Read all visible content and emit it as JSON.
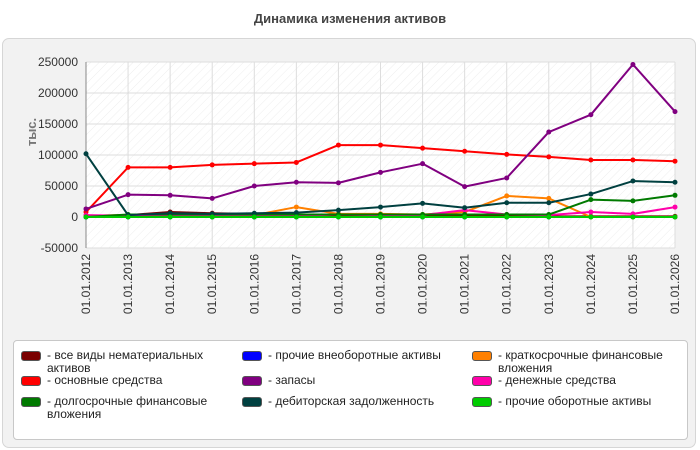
{
  "chart_data": {
    "type": "line",
    "title": "Динамика изменения активов",
    "ylabel": "тыс.",
    "xlabel": "",
    "ylim": [
      -50000,
      250000
    ],
    "yticks": [
      -50000,
      0,
      50000,
      100000,
      150000,
      200000,
      250000
    ],
    "ytick_labels": [
      "-50000",
      "0",
      "50000",
      "100000",
      "150000",
      "200000",
      "250000"
    ],
    "grid": true,
    "legend_position": "bottom",
    "categories": [
      "01.01.2012",
      "01.01.2013",
      "01.01.2014",
      "01.01.2015",
      "01.01.2016",
      "01.01.2017",
      "01.01.2018",
      "01.01.2019",
      "01.01.2020",
      "01.01.2021",
      "01.01.2022",
      "01.01.2023",
      "01.01.2024",
      "01.01.2025",
      "01.01.2026"
    ],
    "series": [
      {
        "name": "- все виды нематериальных активов",
        "color": "#7a0000",
        "values": [
          2000,
          3000,
          8000,
          6000,
          5000,
          4000,
          3000,
          3000,
          2000,
          2000,
          2000,
          1000,
          1000,
          1000,
          1000
        ]
      },
      {
        "name": "- прочие внеоборотные активы",
        "color": "#0000ff",
        "values": [
          0,
          0,
          0,
          0,
          0,
          0,
          0,
          0,
          0,
          0,
          0,
          0,
          0,
          0,
          0
        ]
      },
      {
        "name": "- краткосрочные финансовые вложения",
        "color": "#ff8000",
        "values": [
          2000,
          3000,
          2000,
          2000,
          3000,
          16000,
          5000,
          5000,
          4000,
          8000,
          34000,
          30000,
          0,
          0,
          0
        ]
      },
      {
        "name": "- основные средства",
        "color": "#ff0000",
        "values": [
          8000,
          80000,
          80000,
          84000,
          86000,
          88000,
          116000,
          116000,
          111000,
          106000,
          101000,
          97000,
          92000,
          92000,
          90000
        ]
      },
      {
        "name": "- запасы",
        "color": "#800080",
        "values": [
          13000,
          36000,
          35000,
          30000,
          50000,
          56000,
          55000,
          72000,
          86000,
          49000,
          63000,
          137000,
          165000,
          246000,
          170000
        ]
      },
      {
        "name": "- денежные средства",
        "color": "#ff00aa",
        "values": [
          3000,
          2000,
          2000,
          2000,
          1000,
          2000,
          4000,
          3000,
          3000,
          11000,
          4000,
          3000,
          8000,
          5000,
          16000
        ]
      },
      {
        "name": "- долгосрочные финансовые вложения",
        "color": "#007a00",
        "values": [
          0,
          4000,
          4000,
          4000,
          4000,
          4000,
          4000,
          4000,
          4000,
          4000,
          4000,
          4000,
          28000,
          26000,
          35000
        ]
      },
      {
        "name": "- дебиторская задолженность",
        "color": "#004040",
        "values": [
          102000,
          3000,
          6000,
          5000,
          6000,
          7000,
          11000,
          16000,
          22000,
          15000,
          23000,
          23000,
          37000,
          58000,
          56000
        ]
      },
      {
        "name": "- прочие оборотные активы",
        "color": "#00cc00",
        "values": [
          0,
          0,
          0,
          0,
          0,
          0,
          0,
          0,
          0,
          0,
          0,
          0,
          0,
          0,
          0
        ]
      }
    ]
  }
}
